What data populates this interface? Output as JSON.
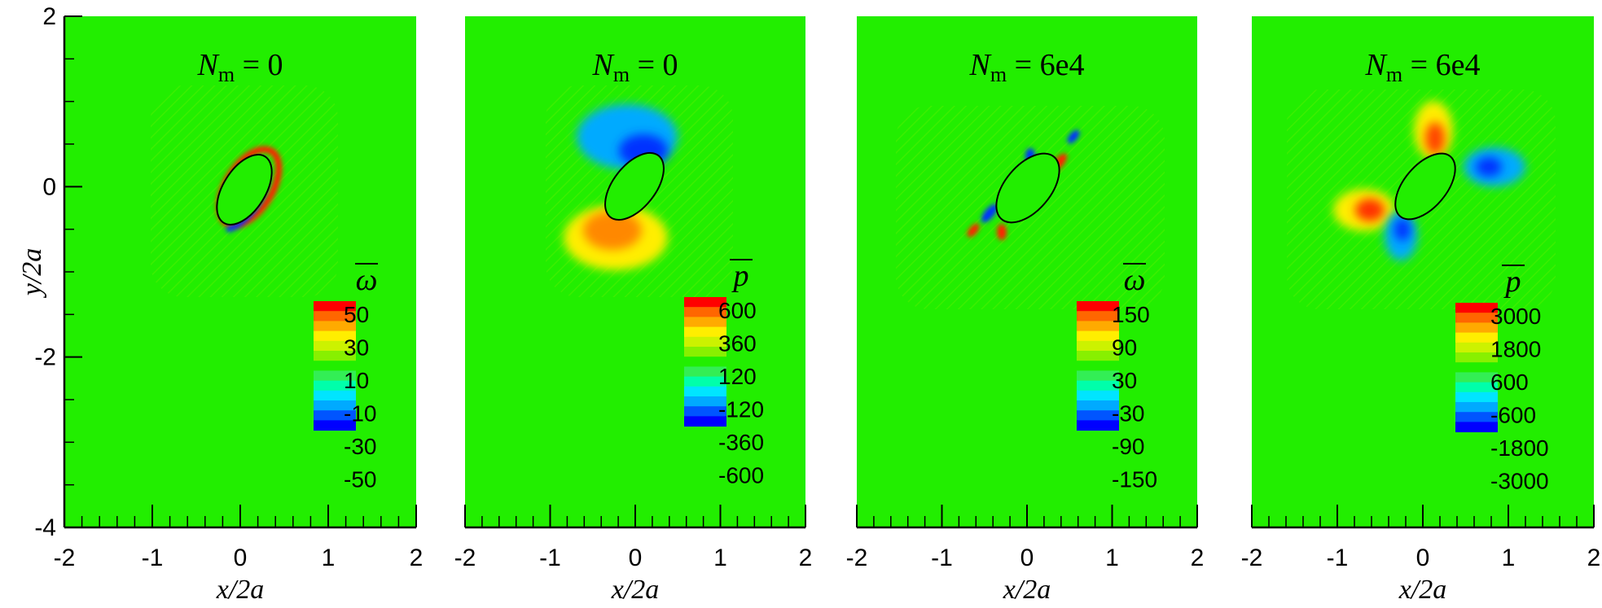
{
  "colors": {
    "background_field": "#22ee00",
    "levels": [
      "#0000ff",
      "#0055ff",
      "#00aaff",
      "#00e5ff",
      "#00ffaa",
      "#33ee55",
      "#22ee00",
      "#88f000",
      "#ccf200",
      "#ffee00",
      "#ffaa00",
      "#ff6600",
      "#ff0000"
    ]
  },
  "chart_data": [
    {
      "type": "heatmap",
      "panel": 1,
      "title": {
        "var": "N",
        "sub": "m",
        "rest": " = 0"
      },
      "xlabel": "x/2a",
      "ylabel": "y/2a",
      "xlim": [
        -2,
        2
      ],
      "ylim": [
        -4,
        2
      ],
      "xticks": [
        "-2",
        "-1",
        "0",
        "1",
        "2"
      ],
      "yticks": [
        "2",
        "0",
        "-2",
        "-4"
      ],
      "colorbar": {
        "symbol": "ω",
        "labels": [
          "50",
          "30",
          "10",
          "-10",
          "-30",
          "-50"
        ]
      },
      "field": "vorticity"
    },
    {
      "type": "heatmap",
      "panel": 2,
      "title": {
        "var": "N",
        "sub": "m",
        "rest": " = 0"
      },
      "xlabel": "x/2a",
      "xlim": [
        -2,
        2
      ],
      "xticks": [
        "-2",
        "-1",
        "0",
        "1",
        "2"
      ],
      "colorbar": {
        "symbol": "p",
        "labels": [
          "600",
          "360",
          "120",
          "-120",
          "-360",
          "-600"
        ]
      },
      "field": "pressure"
    },
    {
      "type": "heatmap",
      "panel": 3,
      "title": {
        "var": "N",
        "sub": "m",
        "rest": " = 6e4"
      },
      "xlabel": "x/2a",
      "xlim": [
        -2,
        2
      ],
      "xticks": [
        "-2",
        "-1",
        "0",
        "1",
        "2"
      ],
      "colorbar": {
        "symbol": "ω",
        "labels": [
          "150",
          "90",
          "30",
          "-30",
          "-90",
          "-150"
        ]
      },
      "field": "vorticity"
    },
    {
      "type": "heatmap",
      "panel": 4,
      "title": {
        "var": "N",
        "sub": "m",
        "rest": " = 6e4"
      },
      "xlabel": "x/2a",
      "xlim": [
        -2,
        2
      ],
      "xticks": [
        "-2",
        "-1",
        "0",
        "1",
        "2"
      ],
      "colorbar": {
        "symbol": "p",
        "labels": [
          "3000",
          "1800",
          "600",
          "-600",
          "-1800",
          "-3000"
        ]
      },
      "field": "pressure"
    }
  ]
}
